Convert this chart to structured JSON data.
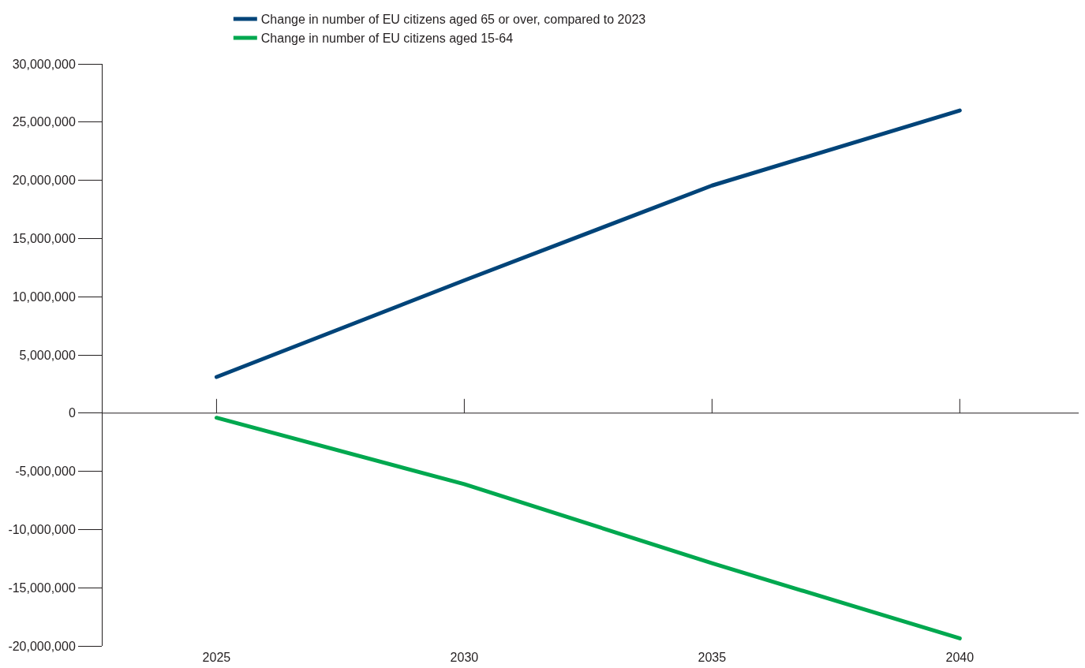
{
  "chart_data": {
    "type": "line",
    "x": [
      2025,
      2030,
      2035,
      2040
    ],
    "series": [
      {
        "name": "Change in number of EU citizens aged 65 or over, compared to 2023",
        "color": "#004479",
        "values": [
          3100000,
          11400000,
          19550000,
          26000000
        ]
      },
      {
        "name": "Change in number of EU citizens aged 15-64",
        "color": "#00a84f",
        "values": [
          -400000,
          -6100000,
          -12900000,
          -19350000
        ]
      }
    ],
    "xlim": [
      2022.7,
      2042.4
    ],
    "xticks": [
      2025,
      2030,
      2035,
      2040
    ],
    "ylim": [
      -20000000,
      30000000
    ],
    "yticks": [
      {
        "value": -20000000,
        "label": "-20,000,000"
      },
      {
        "value": -15000000,
        "label": "-15,000,000"
      },
      {
        "value": -10000000,
        "label": "-10,000,000"
      },
      {
        "value": -5000000,
        "label": "-5,000,000"
      },
      0,
      {
        "value": 5000000,
        "label": "5,000,000"
      },
      {
        "value": 10000000,
        "label": "10,000,000"
      },
      {
        "value": 15000000,
        "label": "15,000,000"
      },
      {
        "value": 20000000,
        "label": "20,000,000"
      },
      {
        "value": 25000000,
        "label": "25,000,000"
      },
      {
        "value": 30000000,
        "label": "30,000,000"
      }
    ],
    "ref_lines": [
      {
        "axis": "y",
        "value": 0,
        "color": "#231f20",
        "line_style": "solid"
      }
    ],
    "grid": false,
    "legend": "top",
    "marker": "none",
    "line_style": "solid"
  }
}
